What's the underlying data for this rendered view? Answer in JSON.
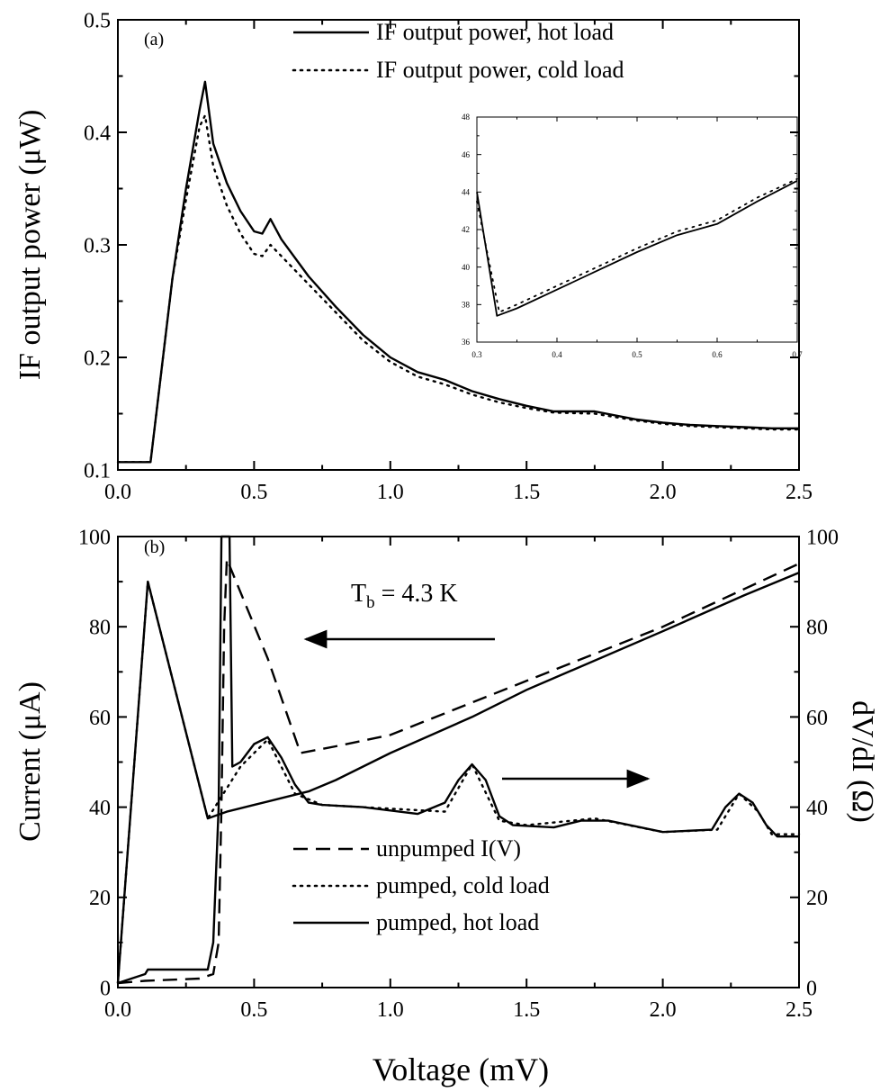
{
  "figure": {
    "xlabel": "Voltage (mV)"
  },
  "chart_data": [
    {
      "panel": "(a)",
      "type": "line",
      "ylabel": "IF output power (μW)",
      "xlim": [
        0,
        2.5
      ],
      "ylim": [
        0.1,
        0.5
      ],
      "xticks": [
        "0.0",
        "0.5",
        "1.0",
        "1.5",
        "2.0",
        "2.5"
      ],
      "yticks": [
        "0.1",
        "0.2",
        "0.3",
        "0.4",
        "0.5"
      ],
      "legend_position": "top-right",
      "series": [
        {
          "name": "IF output power, hot load",
          "style": "solid",
          "x": [
            0.0,
            0.12,
            0.2,
            0.25,
            0.3,
            0.32,
            0.35,
            0.4,
            0.45,
            0.5,
            0.53,
            0.56,
            0.6,
            0.7,
            0.8,
            0.9,
            1.0,
            1.1,
            1.2,
            1.3,
            1.4,
            1.5,
            1.6,
            1.75,
            1.9,
            2.0,
            2.1,
            2.2,
            2.3,
            2.4,
            2.5
          ],
          "y": [
            0.107,
            0.107,
            0.27,
            0.35,
            0.42,
            0.445,
            0.39,
            0.355,
            0.33,
            0.312,
            0.31,
            0.323,
            0.305,
            0.272,
            0.245,
            0.22,
            0.2,
            0.187,
            0.18,
            0.17,
            0.163,
            0.157,
            0.152,
            0.152,
            0.145,
            0.142,
            0.14,
            0.139,
            0.138,
            0.137,
            0.137
          ]
        },
        {
          "name": "IF output power, cold load",
          "style": "dotted",
          "x": [
            0.0,
            0.12,
            0.2,
            0.25,
            0.3,
            0.32,
            0.35,
            0.4,
            0.45,
            0.5,
            0.53,
            0.56,
            0.6,
            0.7,
            0.8,
            0.9,
            1.0,
            1.1,
            1.2,
            1.3,
            1.4,
            1.5,
            1.6,
            1.75,
            1.9,
            2.0,
            2.1,
            2.2,
            2.3,
            2.4,
            2.5
          ],
          "y": [
            0.107,
            0.107,
            0.27,
            0.34,
            0.405,
            0.415,
            0.37,
            0.335,
            0.31,
            0.292,
            0.29,
            0.3,
            0.29,
            0.265,
            0.24,
            0.215,
            0.196,
            0.183,
            0.176,
            0.167,
            0.16,
            0.155,
            0.151,
            0.15,
            0.144,
            0.141,
            0.139,
            0.138,
            0.137,
            0.136,
            0.136
          ]
        }
      ]
    },
    {
      "panel": "inset",
      "type": "line",
      "xlim": [
        0.3,
        0.7
      ],
      "ylim": [
        36,
        48
      ],
      "xticks": [
        "0.3",
        "0.4",
        "0.5",
        "0.6",
        "0.7"
      ],
      "yticks": [
        "36",
        "38",
        "40",
        "42",
        "44",
        "46",
        "48"
      ],
      "series": [
        {
          "name": "",
          "style": "solid",
          "x": [
            0.3,
            0.325,
            0.35,
            0.4,
            0.45,
            0.5,
            0.55,
            0.6,
            0.65,
            0.7
          ],
          "y": [
            44,
            37.4,
            37.8,
            38.8,
            39.8,
            40.8,
            41.7,
            42.3,
            43.5,
            44.6
          ]
        },
        {
          "name": "",
          "style": "dotted",
          "x": [
            0.3,
            0.328,
            0.35,
            0.4,
            0.45,
            0.5,
            0.55,
            0.6,
            0.65,
            0.7
          ],
          "y": [
            43.5,
            37.6,
            38.0,
            39.0,
            40.0,
            41.0,
            41.9,
            42.5,
            43.7,
            44.7
          ]
        }
      ]
    },
    {
      "panel": "(b)",
      "type": "line",
      "ylabel": "Current (μA)",
      "ylabel_right": "dV/dI (Ω)",
      "xlim": [
        0,
        2.5
      ],
      "ylim": [
        0,
        100
      ],
      "ylim_right": [
        0,
        100
      ],
      "xticks": [
        "0.0",
        "0.5",
        "1.0",
        "1.5",
        "2.0",
        "2.5"
      ],
      "yticks": [
        "0",
        "20",
        "40",
        "60",
        "80",
        "100"
      ],
      "yticks_right": [
        "0",
        "20",
        "40",
        "60",
        "80",
        "100"
      ],
      "annotation": "T_b = 4.3 K",
      "legend_position": "bottom-center",
      "series": [
        {
          "name": "unpumped I(V)",
          "style": "dashed",
          "x": [
            0.0,
            0.1,
            0.3,
            0.35,
            0.37,
            0.38,
            0.39,
            0.4,
            0.55,
            0.67,
            0.8,
            1.0,
            1.5,
            2.0,
            2.5
          ],
          "y": [
            1,
            1.5,
            2,
            3,
            10,
            40,
            80,
            95,
            73,
            52,
            53.5,
            56,
            68,
            80,
            94
          ]
        },
        {
          "name": "pumped, cold load",
          "style": "dotted",
          "x": [
            0.0,
            0.11,
            0.33,
            0.45,
            0.55,
            0.65,
            0.75,
            0.9,
            1.2,
            1.3,
            1.4,
            1.5,
            1.75,
            2.0,
            2.2,
            2.28,
            2.35,
            2.4,
            2.5
          ],
          "y": [
            1,
            90,
            37.5,
            49,
            55,
            43,
            40.5,
            40,
            39,
            49.5,
            37,
            36,
            37.5,
            34.5,
            35,
            43,
            39,
            34,
            34
          ]
        },
        {
          "name": "pumped, hot load",
          "style": "solid",
          "x": [
            0.0,
            0.11,
            0.33,
            0.4,
            0.5,
            0.6,
            0.7,
            0.8,
            1.0,
            1.3,
            1.5,
            2.0,
            2.3,
            2.5
          ],
          "y": [
            1,
            90,
            37.5,
            39,
            40.5,
            42,
            43.5,
            46,
            52,
            60,
            66,
            79,
            87,
            92
          ]
        },
        {
          "name": "",
          "style": "solid",
          "axis": "right",
          "x": [
            0.0,
            0.05,
            0.1,
            0.11,
            0.2,
            0.3,
            0.33,
            0.35,
            0.37,
            0.38,
            0.4,
            0.41,
            0.42,
            0.45,
            0.5,
            0.55,
            0.6,
            0.65,
            0.7,
            0.75,
            0.9,
            1.1,
            1.2,
            1.25,
            1.3,
            1.35,
            1.4,
            1.45,
            1.6,
            1.7,
            1.8,
            2.0,
            2.18,
            2.23,
            2.28,
            2.33,
            2.38,
            2.42,
            2.5
          ],
          "y": [
            1,
            2,
            3,
            4,
            4,
            4,
            4,
            10,
            40,
            100,
            100,
            100,
            49,
            50,
            54,
            55.5,
            51,
            45,
            41,
            40.5,
            40,
            38.5,
            41,
            46,
            49.5,
            46,
            38,
            36,
            35.5,
            37,
            37,
            34.5,
            35,
            40,
            43,
            41,
            36,
            33.5,
            33.5
          ]
        }
      ]
    }
  ]
}
